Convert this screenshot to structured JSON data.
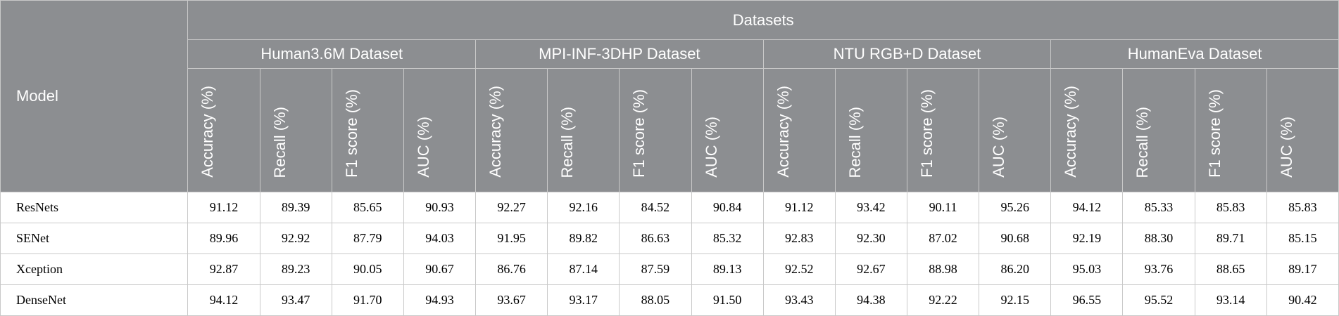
{
  "header": {
    "model_label": "Model",
    "datasets_label": "Datasets",
    "groups": [
      "Human3.6M Dataset",
      "MPI-INF-3DHP Dataset",
      "NTU RGB+D Dataset",
      "HumanEva Dataset"
    ],
    "metrics": [
      "Accuracy (%)",
      "Recall (%)",
      "F1 score (%)",
      "AUC (%)"
    ]
  },
  "rows": [
    {
      "model": "ResNets",
      "values": [
        "91.12",
        "89.39",
        "85.65",
        "90.93",
        "92.27",
        "92.16",
        "84.52",
        "90.84",
        "91.12",
        "93.42",
        "90.11",
        "95.26",
        "94.12",
        "85.33",
        "85.83",
        "85.83"
      ]
    },
    {
      "model": "SENet",
      "values": [
        "89.96",
        "92.92",
        "87.79",
        "94.03",
        "91.95",
        "89.82",
        "86.63",
        "85.32",
        "92.83",
        "92.30",
        "87.02",
        "90.68",
        "92.19",
        "88.30",
        "89.71",
        "85.15"
      ]
    },
    {
      "model": "Xception",
      "values": [
        "92.87",
        "89.23",
        "90.05",
        "90.67",
        "86.76",
        "87.14",
        "87.59",
        "89.13",
        "92.52",
        "92.67",
        "88.98",
        "86.20",
        "95.03",
        "93.76",
        "88.65",
        "89.17"
      ]
    },
    {
      "model": "DenseNet",
      "values": [
        "94.12",
        "93.47",
        "91.70",
        "94.93",
        "93.67",
        "93.17",
        "88.05",
        "91.50",
        "93.43",
        "94.38",
        "92.22",
        "92.15",
        "96.55",
        "95.52",
        "93.14",
        "90.42"
      ]
    }
  ]
}
